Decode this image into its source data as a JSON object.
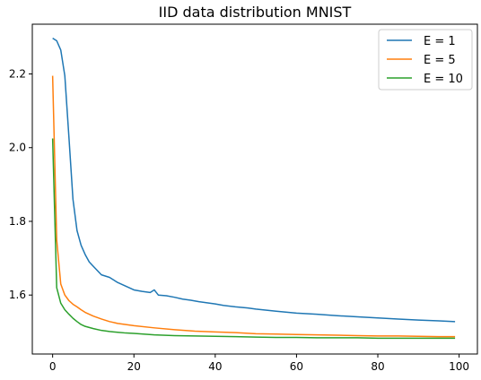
{
  "chart_data": {
    "type": "line",
    "title": "IID data distribution MNIST",
    "xlabel": "",
    "ylabel": "",
    "xlim": [
      -5,
      104.5
    ],
    "ylim": [
      1.44,
      2.335
    ],
    "xticks": [
      0,
      20,
      40,
      60,
      80,
      100
    ],
    "yticks": [
      1.6,
      1.8,
      2.0,
      2.2
    ],
    "xtick_labels": [
      "0",
      "20",
      "40",
      "60",
      "80",
      "100"
    ],
    "ytick_labels": [
      "1.6",
      "1.8",
      "2.0",
      "2.2"
    ],
    "grid": false,
    "legend_position": "top-right",
    "series": [
      {
        "name": "E = 1",
        "color": "#1f77b4",
        "x": [
          0,
          1,
          2,
          3,
          4,
          5,
          6,
          7,
          8,
          9,
          10,
          12,
          14,
          16,
          18,
          20,
          22,
          24,
          25,
          26,
          28,
          30,
          32,
          34,
          36,
          38,
          40,
          42,
          45,
          48,
          50,
          55,
          60,
          65,
          70,
          75,
          80,
          85,
          90,
          95,
          99
        ],
        "values": [
          2.297,
          2.29,
          2.265,
          2.195,
          2.03,
          1.86,
          1.775,
          1.735,
          1.71,
          1.69,
          1.678,
          1.655,
          1.648,
          1.634,
          1.624,
          1.614,
          1.61,
          1.607,
          1.614,
          1.6,
          1.598,
          1.594,
          1.589,
          1.586,
          1.582,
          1.579,
          1.576,
          1.572,
          1.568,
          1.565,
          1.562,
          1.556,
          1.551,
          1.548,
          1.544,
          1.541,
          1.538,
          1.535,
          1.532,
          1.53,
          1.528
        ]
      },
      {
        "name": "E = 5",
        "color": "#ff7f0e",
        "x": [
          0,
          1,
          2,
          3,
          4,
          5,
          6,
          7,
          8,
          10,
          12,
          14,
          16,
          18,
          20,
          25,
          30,
          35,
          40,
          45,
          50,
          55,
          60,
          65,
          70,
          75,
          80,
          85,
          90,
          95,
          99
        ],
        "values": [
          2.195,
          1.75,
          1.63,
          1.6,
          1.585,
          1.575,
          1.568,
          1.56,
          1.553,
          1.543,
          1.535,
          1.528,
          1.523,
          1.52,
          1.517,
          1.511,
          1.506,
          1.502,
          1.5,
          1.498,
          1.495,
          1.494,
          1.493,
          1.492,
          1.491,
          1.49,
          1.489,
          1.489,
          1.488,
          1.487,
          1.487
        ]
      },
      {
        "name": "E = 10",
        "color": "#2ca02c",
        "x": [
          0,
          1,
          2,
          3,
          4,
          5,
          6,
          7,
          8,
          10,
          12,
          14,
          16,
          18,
          20,
          25,
          30,
          35,
          40,
          45,
          50,
          55,
          60,
          65,
          70,
          75,
          80,
          85,
          90,
          95,
          99
        ],
        "values": [
          2.025,
          1.62,
          1.578,
          1.56,
          1.548,
          1.537,
          1.528,
          1.52,
          1.515,
          1.509,
          1.504,
          1.501,
          1.499,
          1.497,
          1.496,
          1.492,
          1.49,
          1.489,
          1.488,
          1.487,
          1.486,
          1.485,
          1.485,
          1.484,
          1.484,
          1.484,
          1.483,
          1.483,
          1.483,
          1.483,
          1.483
        ]
      }
    ]
  }
}
